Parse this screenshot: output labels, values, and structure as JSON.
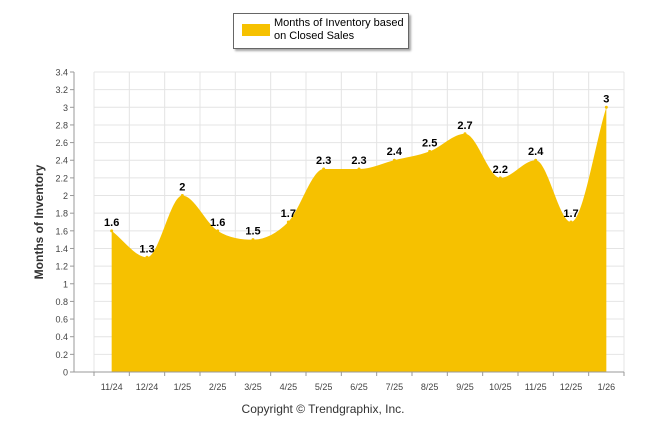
{
  "chart_data": {
    "type": "area",
    "title": "",
    "ylabel": "Months of Inventory",
    "xlabel": "",
    "categories": [
      "11/24",
      "12/24",
      "1/25",
      "2/25",
      "3/25",
      "4/25",
      "5/25",
      "6/25",
      "7/25",
      "8/25",
      "9/25",
      "10/25",
      "11/25",
      "12/25",
      "1/26"
    ],
    "series": [
      {
        "name": "Months of Inventory based on Closed Sales",
        "values": [
          1.6,
          1.3,
          2,
          1.6,
          1.5,
          1.7,
          2.3,
          2.3,
          2.4,
          2.5,
          2.7,
          2.2,
          2.4,
          1.7,
          3
        ]
      }
    ],
    "value_labels": [
      "1.6",
      "1.3",
      "2",
      "1.6",
      "1.5",
      "1.7",
      "2.3",
      "2.3",
      "2.4",
      "2.5",
      "2.7",
      "2.2",
      "2.4",
      "1.7",
      "3"
    ],
    "ylim": [
      0,
      3.4
    ],
    "y_ticks": [
      "0",
      "0.2",
      "0.4",
      "0.6",
      "0.8",
      "1",
      "1.2",
      "1.4",
      "1.6",
      "1.8",
      "2",
      "2.2",
      "2.4",
      "2.6",
      "2.8",
      "3",
      "3.2",
      "3.4"
    ],
    "grid": true,
    "legend_position": "top-center"
  },
  "legend": {
    "label": "Months of Inventory based on Closed Sales"
  },
  "copyright": "Copyright © Trendgraphix, Inc.",
  "colors": {
    "area": "#f6c100",
    "grid": "#e4e4e4",
    "axis": "#999999"
  }
}
